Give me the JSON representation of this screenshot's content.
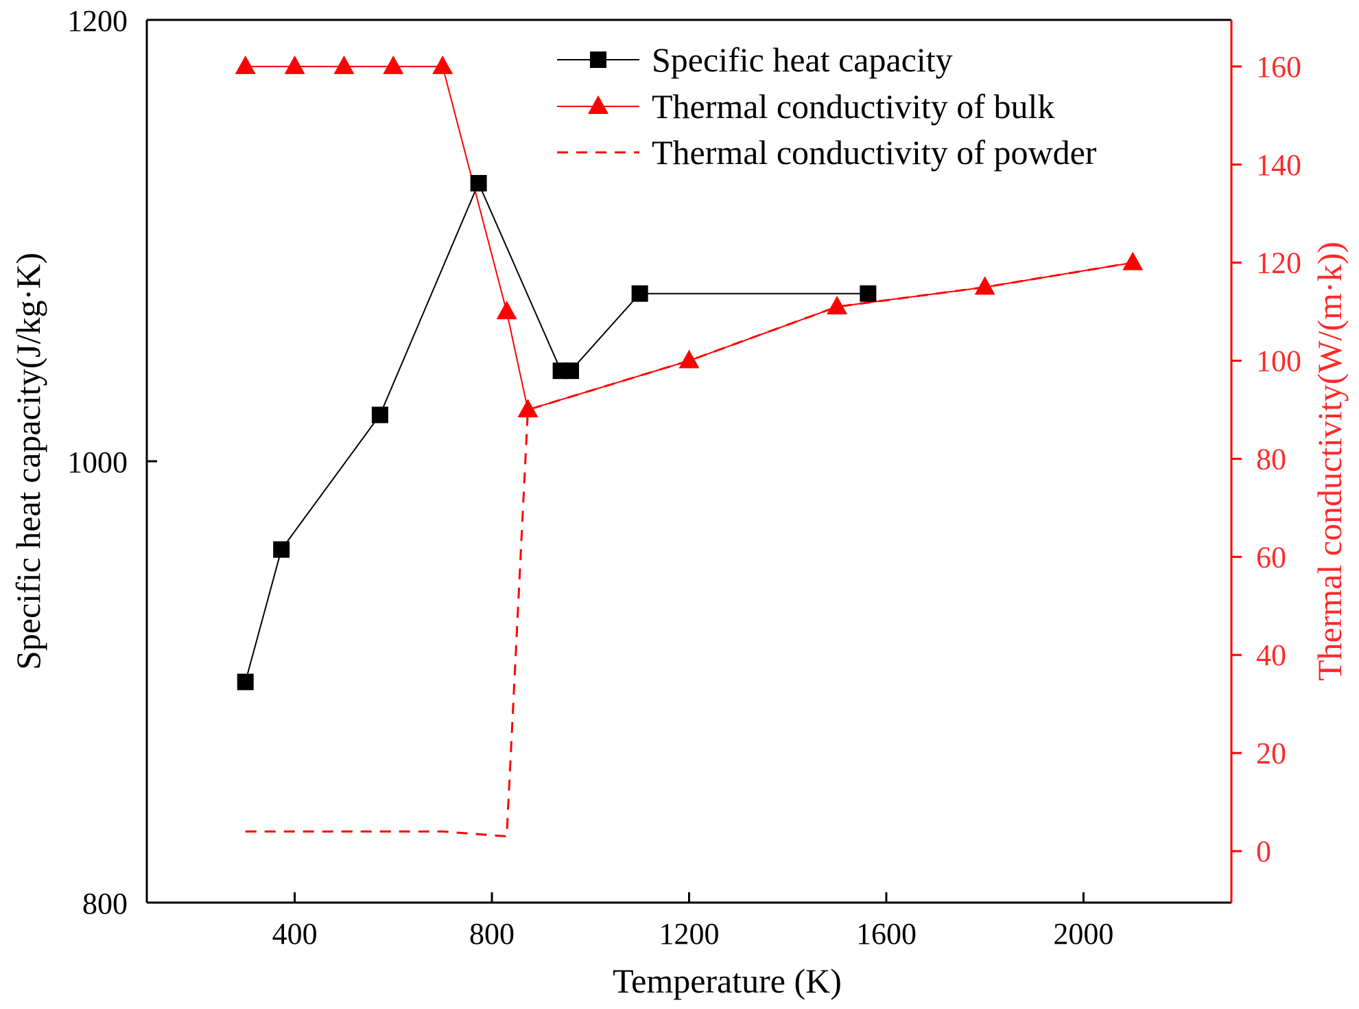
{
  "colors": {
    "black": "#000000",
    "red": "#ff0000",
    "red_axis": "#ff2a2a"
  },
  "chart_data": {
    "type": "line",
    "xlabel": "Temperature (K)",
    "ylabel": "Specific heat capacity(J/kg·K)",
    "y2label": "Thermal conductivity(W/(m·k))",
    "xlim": [
      100,
      2300
    ],
    "ylim": [
      800,
      1200
    ],
    "y2lim": [
      -10.5,
      169.5
    ],
    "xticks": [
      400,
      800,
      1200,
      1600,
      2000
    ],
    "yticks": [
      800,
      1000,
      1200
    ],
    "y2ticks": [
      0,
      20,
      40,
      60,
      80,
      100,
      120,
      140,
      160
    ],
    "legend_position": "top-right",
    "series": [
      {
        "name": "Specific heat capacity",
        "axis": "left",
        "style": "solid",
        "marker": "square",
        "color": "#000000",
        "x": [
          300,
          373,
          573,
          773,
          940,
          960,
          1100,
          1563
        ],
        "y": [
          900,
          960,
          1021,
          1126,
          1041,
          1041,
          1076,
          1076
        ]
      },
      {
        "name": "Thermal conductivity of bulk",
        "axis": "right",
        "style": "solid",
        "marker": "triangle",
        "color": "#ff0000",
        "x": [
          300,
          400,
          500,
          600,
          700,
          830,
          873,
          1200,
          1500,
          1800,
          2100
        ],
        "y": [
          160,
          160,
          160,
          160,
          160,
          110,
          90,
          100,
          111,
          115,
          120
        ]
      },
      {
        "name": "Thermal conductivity of powder",
        "axis": "right",
        "style": "dashed",
        "marker": "none",
        "color": "#ff0000",
        "x": [
          300,
          700,
          830,
          873,
          1200,
          1500,
          1800,
          2100
        ],
        "y": [
          4,
          4,
          3,
          90,
          100,
          111,
          115,
          120
        ]
      }
    ]
  }
}
